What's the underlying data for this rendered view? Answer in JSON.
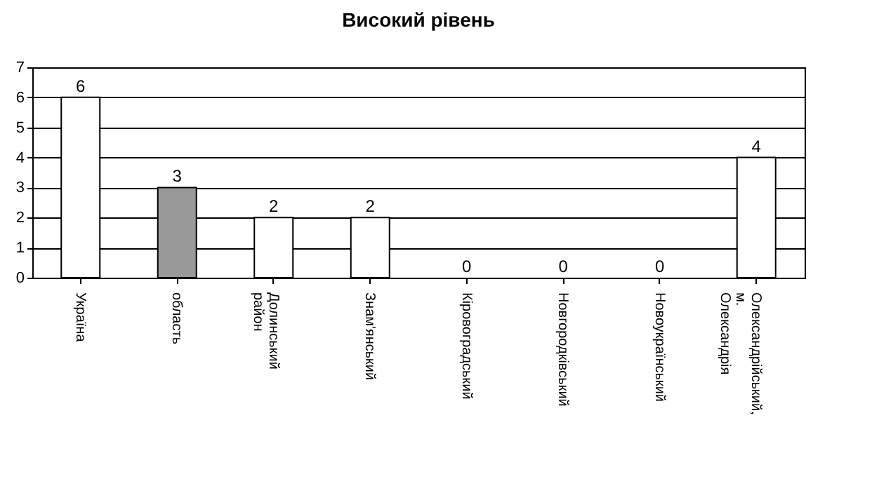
{
  "chart_data": {
    "type": "bar",
    "title": "Високий рівень",
    "categories": [
      "Україна",
      "область",
      "Долинський район",
      "Знам'янський",
      "Кіровоградський",
      "Новгородківський",
      "Новоукраїнський",
      "Олександрійський, м. Олександрія"
    ],
    "values": [
      6,
      3,
      2,
      2,
      0,
      0,
      0,
      4
    ],
    "colors": [
      "#ffffff",
      "#999999",
      "#ffffff",
      "#ffffff",
      "#ffffff",
      "#ffffff",
      "#ffffff",
      "#ffffff"
    ],
    "ylim": [
      0,
      7
    ],
    "yticks": [
      0,
      1,
      2,
      3,
      4,
      5,
      6,
      7
    ],
    "grid": "y",
    "data_labels": true
  }
}
